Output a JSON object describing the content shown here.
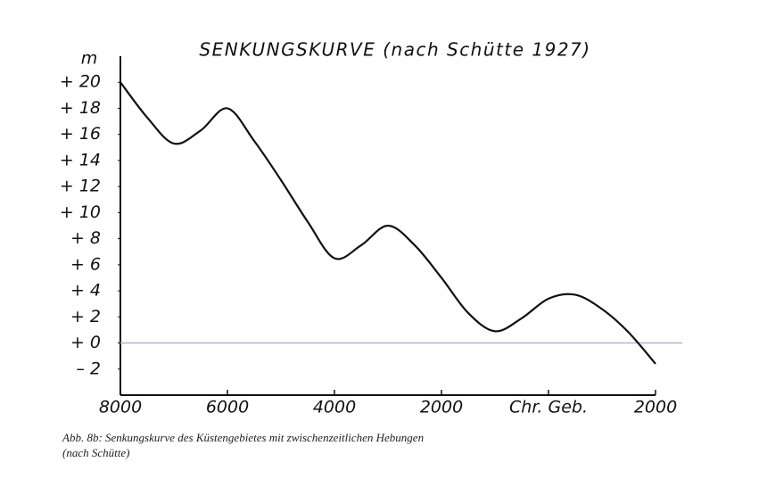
{
  "chart_data": {
    "type": "line",
    "title": "SENKUNGSKURVE (nach Schütte 1927)",
    "y_unit": "m",
    "caption": [
      "Abb. 8b: Senkungskurve des Küstengebietes mit zwischenzeitlichen Hebungen",
      "(nach Schütte)"
    ],
    "x": [
      -8000,
      -7500,
      -7000,
      -6500,
      -6000,
      -5500,
      -5000,
      -4500,
      -4000,
      -3500,
      -3000,
      -2500,
      -2000,
      -1500,
      -1000,
      -500,
      0,
      500,
      1000,
      1500,
      2000
    ],
    "values": [
      20,
      17.3,
      15.3,
      16.3,
      18,
      15.5,
      12.5,
      9.3,
      6.5,
      7.5,
      9,
      7.5,
      5,
      2.3,
      0.9,
      1.9,
      3.4,
      3.7,
      2.6,
      0.8,
      -1.6
    ],
    "color": "#111111",
    "xlim": [
      -8000,
      2000
    ],
    "xticks": [
      {
        "value": -8000,
        "label": "8000"
      },
      {
        "value": -6000,
        "label": "6000"
      },
      {
        "value": -4000,
        "label": "4000"
      },
      {
        "value": -2000,
        "label": "2000"
      },
      {
        "value": 0,
        "label": "Chr. Geb."
      },
      {
        "value": 2000,
        "label": "2000"
      }
    ],
    "ylim": [
      -4,
      22
    ],
    "yticks": [
      {
        "value": -2,
        "label": "– 2"
      },
      {
        "value": 0,
        "label": "+ 0"
      },
      {
        "value": 2,
        "label": "+ 2"
      },
      {
        "value": 4,
        "label": "+ 4"
      },
      {
        "value": 6,
        "label": "+ 6"
      },
      {
        "value": 8,
        "label": "+ 8"
      },
      {
        "value": 10,
        "label": "+ 10"
      },
      {
        "value": 12,
        "label": "+ 12"
      },
      {
        "value": 14,
        "label": "+ 14"
      },
      {
        "value": 16,
        "label": "+ 16"
      },
      {
        "value": 18,
        "label": "+ 18"
      },
      {
        "value": 20,
        "label": "+ 20"
      }
    ],
    "zero_line": true,
    "zero_line_color": "#b8b0d8"
  }
}
